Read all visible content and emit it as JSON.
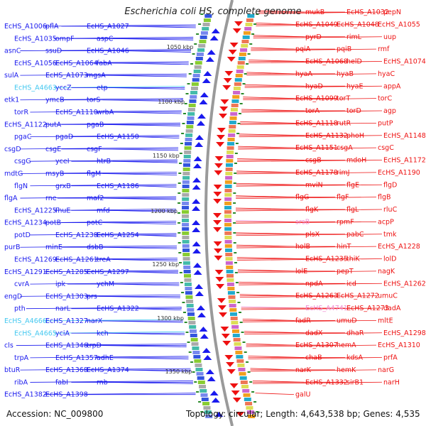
{
  "title": "Escherichia coli HS, complete genome",
  "accession": "Accession: NC_009800",
  "topology": "Topology: circular; Length: 4,643,538 bp; Genes: 4,535",
  "colors": {
    "left_strand": "#1a1aee",
    "right_strand": "#ee1111",
    "rna": "#44c8f0",
    "pseudo": "#f08ad0",
    "backbone": "#9a9a9a",
    "tick": "#2a8a2a"
  },
  "ticks": [
    "1050 kbp",
    "1100 kbp",
    "1150 kbp",
    "1200 kbp",
    "1250 kbp",
    "1300 kbp",
    "1350 kbp"
  ],
  "left_labels": [
    "EcHS_A1006",
    "pflA",
    "EcHS_A1027",
    "EcHS_A1035",
    "ompF",
    "aspC",
    "asnC",
    "ssuD",
    "EcHS_A1046",
    "EcHS_A1056",
    "EcHS_A1064",
    "fabA",
    "sulA",
    "EcHS_A1073",
    "mgsA",
    "EcHS_A4663",
    "yccZ",
    "etp",
    "etk1",
    "ymcB",
    "torS",
    "torR",
    "EcHS_A1110",
    "wrbA",
    "EcHS_A1122",
    "putA",
    "pgaB",
    "pgaC",
    "pgaD",
    "EcHS_A1150",
    "csgD",
    "csgE",
    "csgF",
    "csgG",
    "yceI",
    "htrB",
    "mdtG",
    "msyB",
    "flgM",
    "flgN",
    "grxB",
    "EcHS_A1186",
    "flgA",
    "rne",
    "maf2",
    "EcHS_A1225",
    "fhuE",
    "mfd",
    "EcHS_A1234",
    "potB",
    "potC",
    "potD",
    "EcHS_A1238",
    "EcHS_A1254",
    "purB",
    "minE",
    "dsbB",
    "EcHS_A1269",
    "EcHS_A1261",
    "treA",
    "EcHS_A1291",
    "EcHS_A1285",
    "EcHS_A1297",
    "cvrA",
    "ipk",
    "ychM",
    "engD",
    "EcHS_A1303",
    "prs",
    "pth",
    "narL",
    "EcHS_A1322",
    "EcHS_A4666",
    "EcHS_A1327",
    "narX",
    "EcHS_A4665",
    "yciA",
    "kch",
    "cls",
    "EcHS_A1346",
    "trpD",
    "trpA",
    "EcHS_A1357",
    "adhE",
    "btuR",
    "EcHS_A1368",
    "EcHS_A1374",
    "ribA",
    "fabI",
    "rnb",
    "EcHS_A1382",
    "EcHS_A1398"
  ],
  "right_labels": [
    "mukB",
    "EcHS_A1032",
    "pepN",
    "EcHS_A1049",
    "EcHS_A1048",
    "EcHS_A1055",
    "pyrD",
    "rimL",
    "uup",
    "pqiA",
    "pqiB",
    "rmf",
    "EcHS_A1068",
    "helD",
    "EcHS_A1074",
    "hyaA",
    "hyaB",
    "hyaC",
    "hyaD",
    "hyaE",
    "appA",
    "EcHS_A1099",
    "torT",
    "torC",
    "torA",
    "torD",
    "agp",
    "EcHS_A1118",
    "rutR",
    "putP",
    "EcHS_A1132",
    "phoH",
    "EcHS_A1148",
    "EcHS_A1151",
    "csgA",
    "csgC",
    "csgB",
    "mdoH",
    "EcHS_A1172",
    "EcHS_A1178",
    "rimJ",
    "EcHS_A1190",
    "mviN",
    "flgE",
    "flgD",
    "flgG",
    "flgF",
    "flgB",
    "flgK",
    "flgL",
    "rluC",
    "srsB",
    "rpmF",
    "acpP",
    "plsX",
    "pabC",
    "tmk",
    "holB",
    "hinT",
    "EcHS_A1228",
    "EcHS_A1235",
    "thiK",
    "lolD",
    "lolE",
    "pepT",
    "nagK",
    "npdA",
    "icd",
    "EcHS_A1262",
    "EcHS_A1263",
    "EcHS_A1272",
    "umuC",
    "EcHS_A4741",
    "EcHS_A1273",
    "dadA",
    "fadR",
    "umuD",
    "mltE",
    "dadX",
    "dhaR",
    "EcHS_A1298",
    "EcHS_A1307",
    "hemA",
    "EcHS_A1310",
    "chaB",
    "kdsA",
    "prfA",
    "narK",
    "hemK",
    "narG",
    "EcHS_A1332",
    "sirB1",
    "narH",
    "galU"
  ]
}
